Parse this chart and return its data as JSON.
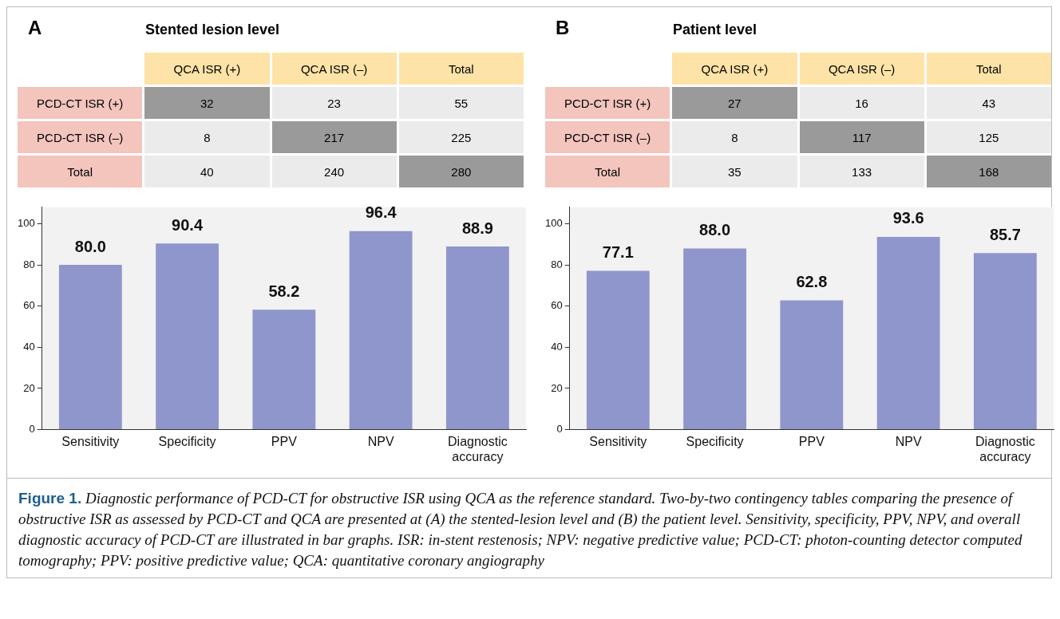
{
  "chart_data": [
    {
      "type": "heatmap",
      "data_labels": true,
      "title": "Stented lesion level",
      "annotations": [
        "A"
      ],
      "categories": [
        "QCA ISR (+)",
        "QCA ISR (–)",
        "Total"
      ],
      "y_categories": [
        "PCD-CT ISR (+)",
        "PCD-CT ISR (–)",
        "Total"
      ],
      "cells": [
        [
          32,
          23,
          55
        ],
        [
          8,
          217,
          225
        ],
        [
          40,
          240,
          280
        ]
      ],
      "colors": [
        [
          "#9a9a9a",
          "#ebebeb",
          "#ebebeb"
        ],
        [
          "#ebebeb",
          "#9a9a9a",
          "#ebebeb"
        ],
        [
          "#ebebeb",
          "#ebebeb",
          "#9a9a9a"
        ]
      ]
    },
    {
      "type": "bar",
      "categories": [
        "Sensitivity",
        "Specificity",
        "PPV",
        "NPV",
        "Diagnostic accuracy"
      ],
      "values": [
        80.0,
        90.4,
        58.2,
        96.4,
        88.9
      ],
      "value_labels": [
        "80.0",
        "90.4",
        "58.2",
        "96.4",
        "88.9"
      ],
      "color": "#8f96cc",
      "ylim": [
        0,
        108
      ],
      "yticks": [
        0,
        20,
        40,
        60,
        80,
        100
      ],
      "grid": false
    },
    {
      "type": "heatmap",
      "data_labels": true,
      "title": "Patient level",
      "annotations": [
        "B"
      ],
      "categories": [
        "QCA ISR (+)",
        "QCA ISR (–)",
        "Total"
      ],
      "y_categories": [
        "PCD-CT ISR (+)",
        "PCD-CT ISR (–)",
        "Total"
      ],
      "cells": [
        [
          27,
          16,
          43
        ],
        [
          8,
          117,
          125
        ],
        [
          35,
          133,
          168
        ]
      ],
      "colors": [
        [
          "#9a9a9a",
          "#ebebeb",
          "#ebebeb"
        ],
        [
          "#ebebeb",
          "#9a9a9a",
          "#ebebeb"
        ],
        [
          "#ebebeb",
          "#ebebeb",
          "#9a9a9a"
        ]
      ]
    },
    {
      "type": "bar",
      "categories": [
        "Sensitivity",
        "Specificity",
        "PPV",
        "NPV",
        "Diagnostic accuracy"
      ],
      "values": [
        77.1,
        88.0,
        62.8,
        93.6,
        85.7
      ],
      "value_labels": [
        "77.1",
        "88.0",
        "62.8",
        "93.6",
        "85.7"
      ],
      "color": "#8f96cc",
      "ylim": [
        0,
        108
      ],
      "yticks": [
        0,
        20,
        40,
        60,
        80,
        100
      ],
      "grid": false,
      "annotations": [
        "Figure 1.",
        "Diagnostic performance of PCD-CT for obstructive ISR using QCA as the reference standard. Two-by-two contingency tables comparing the presence of obstructive ISR as assessed by PCD-CT and QCA are presented at (A) the stented-lesion level and (B) the patient level. Sensitivity, specificity, PPV, NPV, and overall diagnostic accuracy of PCD-CT are illustrated in bar graphs. ISR: in-stent restenosis; NPV: negative predictive value; PCD-CT: photon-counting detector computed tomography; PPV: positive predictive value; QCA: quantitative coronary angiography"
      ]
    }
  ]
}
